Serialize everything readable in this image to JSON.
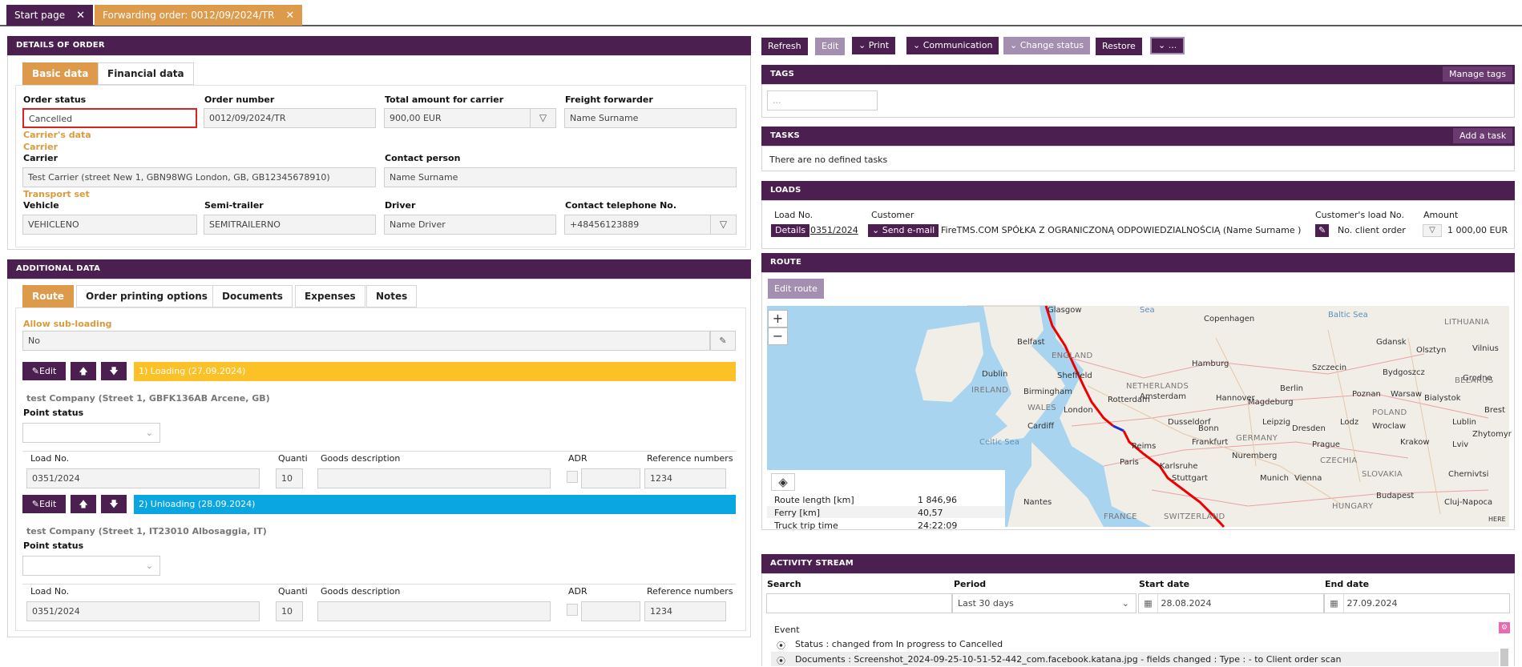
{
  "tabs": [
    {
      "label": "Start page"
    },
    {
      "label": "Forwarding order: 0012/09/2024/TR"
    }
  ],
  "order_details": {
    "header": "DETAILS OF ORDER",
    "tabs": [
      "Basic data",
      "Financial data"
    ],
    "order_status_label": "Order status",
    "order_status": "Cancelled",
    "order_number_label": "Order number",
    "order_number": "0012/09/2024/TR",
    "total_amount_label": "Total amount for carrier",
    "total_amount": "900,00 EUR",
    "freight_forwarder_label": "Freight forwarder",
    "freight_forwarder": "Name Surname",
    "carriers_data_label": "Carrier's data",
    "carrier_group_label": "Carrier",
    "carrier_label": "Carrier",
    "carrier": "Test Carrier (street New 1, GBN98WG London, GB, GB12345678910)",
    "contact_person_label": "Contact person",
    "contact_person": "Name Surname",
    "transport_set_label": "Transport set",
    "vehicle_label": "Vehicle",
    "vehicle": "VEHICLENO",
    "semitrailer_label": "Semi-trailer",
    "semitrailer": "SEMITRAILERNO",
    "driver_label": "Driver",
    "driver": "Name Driver",
    "phone_label": "Contact telephone No.",
    "phone": "+48456123889"
  },
  "additional": {
    "header": "ADDITIONAL DATA",
    "tabs": [
      "Route",
      "Order printing options",
      "Documents",
      "Expenses",
      "Notes"
    ],
    "allow_subloading_label": "Allow sub-loading",
    "allow_subloading": "No",
    "edit_label": "Edit",
    "points": [
      {
        "bar": "1) Loading (27.09.2024)",
        "bar_color": "#fdc128",
        "company": "test Company (Street 1, GBFK136AB Arcene, GB)",
        "point_status_label": "Point status",
        "col_load": "Load No.",
        "col_qty": "Quanti",
        "col_goods": "Goods description",
        "col_adr": "ADR",
        "col_ref": "Reference numbers",
        "load_no": "0351/2024",
        "qty": "10",
        "ref": "1234"
      },
      {
        "bar": "2) Unloading (28.09.2024)",
        "bar_color": "#0aa6e2",
        "company": "test Company (Street 1, IT23010 Albosaggia, IT)",
        "point_status_label": "Point status",
        "col_load": "Load No.",
        "col_qty": "Quanti",
        "col_goods": "Goods description",
        "col_adr": "ADR",
        "col_ref": "Reference numbers",
        "load_no": "0351/2024",
        "qty": "10",
        "ref": "1234"
      }
    ]
  },
  "toolbar": {
    "refresh": "Refresh",
    "edit": "Edit",
    "print": "Print",
    "communication": "Communication",
    "change_status": "Change status",
    "restore": "Restore",
    "more": "..."
  },
  "tags": {
    "header": "TAGS",
    "manage": "Manage tags",
    "placeholder": "..."
  },
  "tasks": {
    "header": "TASKS",
    "add": "Add a task",
    "empty": "There are no defined tasks"
  },
  "loads": {
    "header": "LOADS",
    "col_load": "Load No.",
    "col_customer": "Customer",
    "col_customer_load": "Customer's load No.",
    "col_amount": "Amount",
    "details": "Details",
    "load_no": "0351/2024",
    "send_email": "Send e-mail",
    "customer": "FireTMS.COM SPÓŁKA Z OGRANICZONĄ ODPOWIEDZIALNOŚCIĄ (Name Surname )",
    "client_order": "No. client order",
    "amount": "1 000,00 EUR"
  },
  "route": {
    "header": "ROUTE",
    "edit_route": "Edit route",
    "zoom_in": "+",
    "zoom_out": "−",
    "route_length_label": "Route length [km]",
    "route_length": "1 846,96",
    "ferry_label": "Ferry [km]",
    "ferry": "40,57",
    "trip_time_label": "Truck trip time",
    "trip_time": "24:22:09",
    "here": "HERE",
    "map_labels": [
      "Glasgow",
      "Copenhagen",
      "Baltic Sea",
      "LITHUANIA",
      "Belfast",
      "ENGLAND",
      "Sheffield",
      "Hamburg",
      "Szczecin",
      "Vilnius",
      "Gdansk",
      "Olsztyn",
      "Grodno",
      "Dublin",
      "IRELAND",
      "Birmingham",
      "NETHERLANDS",
      "Amsterdam",
      "Berlin",
      "Bydgoszcz",
      "Bialystok",
      "BELARUS",
      "Poznan",
      "Warsaw",
      "WALES",
      "London",
      "Rotterdam",
      "Hannover",
      "Magdeburg",
      "POLAND",
      "Cardiff",
      "Dusseldorf",
      "Leipzig",
      "Wroclaw",
      "Lodz",
      "Lublin",
      "Bonn",
      "Dresden",
      "Brest",
      "Celtic Sea",
      "Frankfurt",
      "GERMANY",
      "Prague",
      "Krakow",
      "Lviv",
      "Zhytomyr",
      "Reims",
      "Nuremberg",
      "CZECHIA",
      "Paris",
      "Karlsruhe",
      "Stuttgart",
      "Munich",
      "Vienna",
      "SLOVAKIA",
      "Chernivtsi",
      "Nantes",
      "Budapest",
      "HUNGARY",
      "FRANCE",
      "SWITZERLAND",
      "Cluj-Napoca",
      "Sea"
    ]
  },
  "activity": {
    "header": "ACTIVITY STREAM",
    "search_label": "Search",
    "period_label": "Period",
    "period": "Last 30 days",
    "start_label": "Start date",
    "start_date": "28.08.2024",
    "end_label": "End date",
    "end_date": "27.09.2024",
    "event_label": "Event",
    "events": [
      "Status : changed from In progress to Cancelled",
      "Documents : Screenshot_2024-09-25-10-51-52-442_com.facebook.katana.jpg - fields changed : Type : - to Client order scan"
    ]
  }
}
